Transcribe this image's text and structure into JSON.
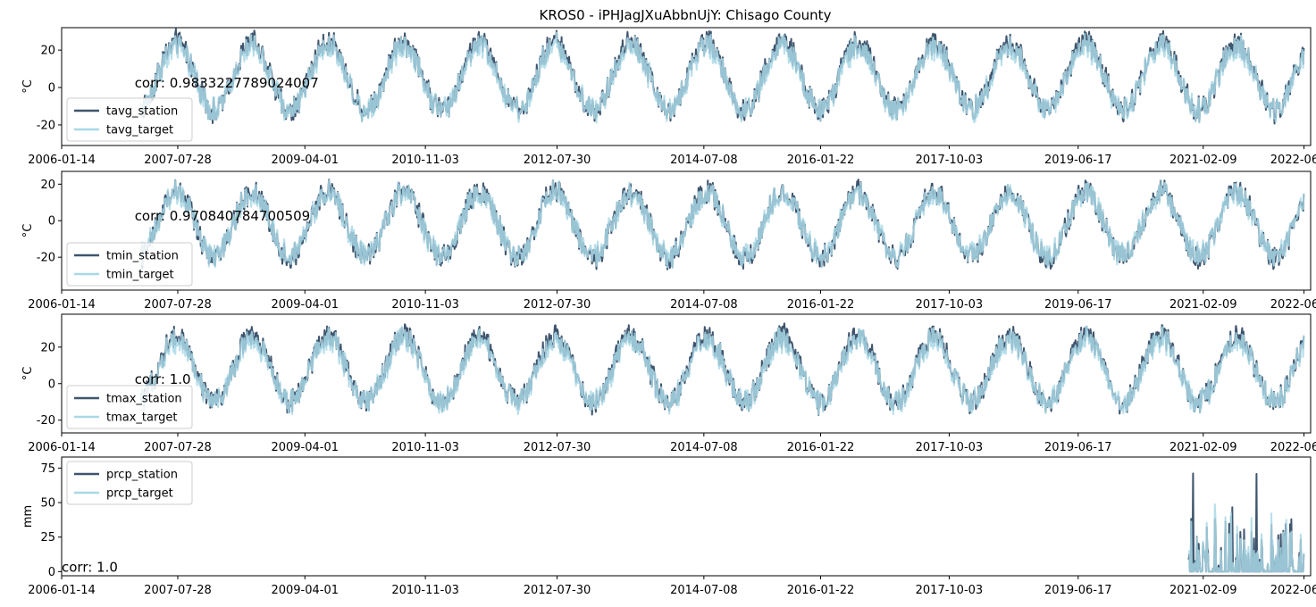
{
  "figure": {
    "title": "KROS0 - iPHJagJXuAbbnUjY: Chisago County"
  },
  "colors": {
    "station": "#3f556e",
    "target": "#a9d8e6",
    "overlap": "#8bb8cc"
  },
  "chart_data": [
    {
      "type": "line",
      "ylabel": "°C",
      "ylim": [
        -31,
        32
      ],
      "yticks": [
        -20,
        0,
        20
      ],
      "xlim": [
        "2006-01-14",
        "2022-07-12"
      ],
      "xticks": [
        "2006-01-14",
        "2007-07-28",
        "2009-04-01",
        "2010-11-03",
        "2012-07-30",
        "2014-07-08",
        "2016-01-22",
        "2017-10-03",
        "2019-06-17",
        "2021-02-09",
        "2022-06-10"
      ],
      "data_start": "2007-02-01",
      "data_end": "2022-06-10",
      "series": [
        {
          "name": "tavg_station",
          "mean": 6,
          "amplitude": 18,
          "noise": 6
        },
        {
          "name": "tavg_target",
          "mean": 5,
          "amplitude": 17,
          "noise": 6
        }
      ],
      "corr_label": "corr: 0.9833227789024007",
      "legend": "lower-left"
    },
    {
      "type": "line",
      "ylabel": "°C",
      "ylim": [
        -38,
        27
      ],
      "yticks": [
        -20,
        0,
        20
      ],
      "xlim": [
        "2006-01-14",
        "2022-07-12"
      ],
      "xticks": [
        "2006-01-14",
        "2007-07-28",
        "2009-04-01",
        "2010-11-03",
        "2012-07-30",
        "2014-07-08",
        "2016-01-22",
        "2017-10-03",
        "2019-06-17",
        "2021-02-09",
        "2022-06-10"
      ],
      "data_start": "2007-02-01",
      "data_end": "2022-06-10",
      "series": [
        {
          "name": "tmin_station",
          "mean": -2,
          "amplitude": 18,
          "noise": 6
        },
        {
          "name": "tmin_target",
          "mean": -2,
          "amplitude": 17,
          "noise": 6
        }
      ],
      "corr_label": "corr: 0.970840784700509",
      "legend": "lower-left"
    },
    {
      "type": "line",
      "ylabel": "°C",
      "ylim": [
        -27,
        38
      ],
      "yticks": [
        -20,
        0,
        20
      ],
      "xlim": [
        "2006-01-14",
        "2022-07-12"
      ],
      "xticks": [
        "2006-01-14",
        "2007-07-28",
        "2009-04-01",
        "2010-11-03",
        "2012-07-30",
        "2014-07-08",
        "2016-01-22",
        "2017-10-03",
        "2019-06-17",
        "2021-02-09",
        "2022-06-10"
      ],
      "data_start": "2007-02-01",
      "data_end": "2022-06-10",
      "series": [
        {
          "name": "tmax_station",
          "mean": 8,
          "amplitude": 18,
          "noise": 6
        },
        {
          "name": "tmax_target",
          "mean": 7,
          "amplitude": 17,
          "noise": 6
        }
      ],
      "corr_label": "corr: 1.0",
      "legend": "lower-left"
    },
    {
      "type": "line",
      "ylabel": "mm",
      "ylim": [
        -3,
        83
      ],
      "yticks": [
        0,
        25,
        50,
        75
      ],
      "xlim": [
        "2006-01-14",
        "2022-07-12"
      ],
      "xticks": [
        "2006-01-14",
        "2007-07-28",
        "2009-04-01",
        "2010-11-03",
        "2012-07-30",
        "2014-07-08",
        "2016-01-22",
        "2017-10-03",
        "2019-06-17",
        "2021-02-09",
        "2022-06-10"
      ],
      "data_start": "2020-12-01",
      "data_end": "2022-06-10",
      "max_value": 79,
      "series": [
        {
          "name": "prcp_station"
        },
        {
          "name": "prcp_target"
        }
      ],
      "corr_label": "corr: 1.0",
      "legend": "upper-left"
    }
  ]
}
